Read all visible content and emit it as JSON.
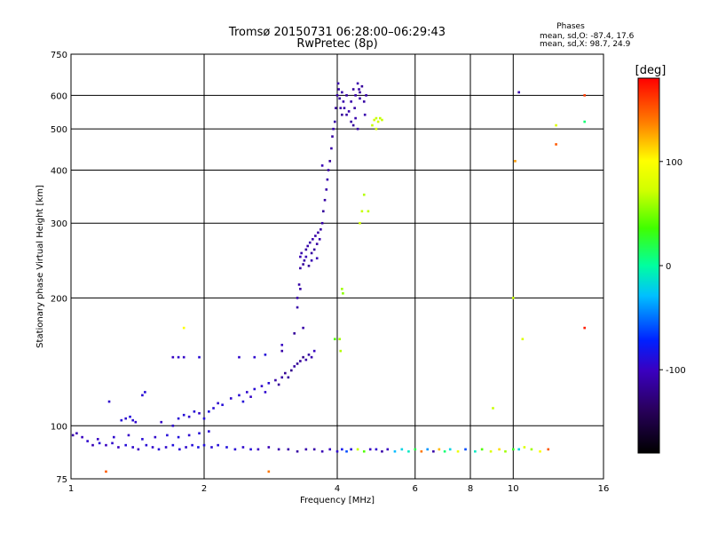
{
  "chart_data": {
    "type": "scatter",
    "title": "Tromsø 20150731 06:28:00–06:29:43",
    "subtitle": "RwPretec (8p)",
    "xlabel": "Frequency [MHz]",
    "ylabel": "Stationary phase Virtual Height [km]",
    "x_scale": "log",
    "y_scale": "log",
    "xlim": [
      1,
      16
    ],
    "ylim": [
      75,
      750
    ],
    "x_ticks": [
      1,
      2,
      4,
      6,
      8,
      10,
      16
    ],
    "y_ticks": [
      75,
      100,
      200,
      300,
      400,
      500,
      600,
      750
    ],
    "x_gridlines": [
      2,
      4,
      6,
      8,
      10
    ],
    "y_gridlines": [
      100,
      200,
      300,
      400,
      500,
      600
    ],
    "grid": true,
    "legend_box": {
      "title": "Phases",
      "line1": "mean, sd,O:  -87.4, 17.6",
      "line2": "mean, sd,X:  98.7, 24.9"
    },
    "colorbar": {
      "label": "[deg]",
      "range": [
        -180,
        180
      ],
      "ticks": [
        -100,
        0,
        100
      ]
    },
    "points": [
      [
        1.01,
        95,
        -110
      ],
      [
        1.03,
        96,
        -105
      ],
      [
        1.06,
        94,
        -100
      ],
      [
        1.09,
        92,
        -95
      ],
      [
        1.12,
        90,
        -105
      ],
      [
        1.16,
        91,
        -90
      ],
      [
        1.2,
        90,
        -100
      ],
      [
        1.24,
        91,
        -95
      ],
      [
        1.28,
        89,
        -100
      ],
      [
        1.33,
        90,
        -90
      ],
      [
        1.38,
        89,
        -95
      ],
      [
        1.42,
        88,
        -100
      ],
      [
        1.48,
        90,
        -92
      ],
      [
        1.53,
        89,
        -96
      ],
      [
        1.58,
        88,
        -90
      ],
      [
        1.64,
        89,
        -95
      ],
      [
        1.7,
        90,
        -88
      ],
      [
        1.76,
        88,
        -92
      ],
      [
        1.82,
        89,
        -95
      ],
      [
        1.88,
        90,
        -90
      ],
      [
        1.94,
        89,
        -85
      ],
      [
        2.0,
        90,
        -88
      ],
      [
        2.08,
        89,
        -92
      ],
      [
        2.15,
        90,
        -90
      ],
      [
        2.25,
        89,
        -88
      ],
      [
        2.35,
        88,
        -92
      ],
      [
        2.45,
        89,
        -95
      ],
      [
        2.55,
        88,
        -90
      ],
      [
        2.65,
        88,
        -100
      ],
      [
        2.8,
        89,
        -105
      ],
      [
        2.95,
        88,
        -108
      ],
      [
        3.1,
        88,
        -110
      ],
      [
        3.25,
        87,
        -112
      ],
      [
        3.4,
        88,
        -108
      ],
      [
        3.55,
        88,
        -110
      ],
      [
        3.7,
        87,
        -105
      ],
      [
        3.85,
        88,
        -100
      ],
      [
        4.0,
        87,
        -95
      ],
      [
        4.1,
        88,
        -80
      ],
      [
        4.2,
        87,
        -60
      ],
      [
        4.3,
        88,
        -90
      ],
      [
        4.45,
        88,
        70
      ],
      [
        4.6,
        87,
        40
      ],
      [
        4.75,
        88,
        -100
      ],
      [
        4.9,
        88,
        -95
      ],
      [
        5.05,
        87,
        -110
      ],
      [
        5.2,
        88,
        -100
      ],
      [
        5.4,
        87,
        -30
      ],
      [
        5.6,
        88,
        -20
      ],
      [
        5.8,
        87,
        -10
      ],
      [
        6.0,
        88,
        20
      ],
      [
        6.2,
        87,
        140
      ],
      [
        6.4,
        88,
        -40
      ],
      [
        6.6,
        87,
        -110
      ],
      [
        6.8,
        88,
        120
      ],
      [
        7.0,
        87,
        10
      ],
      [
        7.2,
        88,
        -20
      ],
      [
        7.5,
        87,
        90
      ],
      [
        7.8,
        88,
        -60
      ],
      [
        8.2,
        87,
        -10
      ],
      [
        8.5,
        88,
        40
      ],
      [
        8.9,
        87,
        80
      ],
      [
        9.3,
        88,
        110
      ],
      [
        9.6,
        87,
        60
      ],
      [
        10.0,
        88,
        30
      ],
      [
        10.3,
        88,
        -20
      ],
      [
        10.6,
        89,
        80
      ],
      [
        11.0,
        88,
        60
      ],
      [
        11.5,
        87,
        100
      ],
      [
        12.0,
        88,
        150
      ],
      [
        1.15,
        93,
        -100
      ],
      [
        1.25,
        94,
        -95
      ],
      [
        1.35,
        95,
        -98
      ],
      [
        1.45,
        93,
        -92
      ],
      [
        1.55,
        94,
        -96
      ],
      [
        1.65,
        95,
        -90
      ],
      [
        1.75,
        94,
        -88
      ],
      [
        1.85,
        95,
        -94
      ],
      [
        1.95,
        96,
        -90
      ],
      [
        2.05,
        97,
        -92
      ],
      [
        1.3,
        103,
        -90
      ],
      [
        1.33,
        104,
        -95
      ],
      [
        1.36,
        105,
        -88
      ],
      [
        1.38,
        103,
        -92
      ],
      [
        1.4,
        102,
        -96
      ],
      [
        1.45,
        118,
        -92
      ],
      [
        1.47,
        120,
        -90
      ],
      [
        1.22,
        114,
        -95
      ],
      [
        1.6,
        102,
        -98
      ],
      [
        1.7,
        100,
        -95
      ],
      [
        1.75,
        104,
        -92
      ],
      [
        1.8,
        106,
        -90
      ],
      [
        1.85,
        105,
        -95
      ],
      [
        1.9,
        108,
        -92
      ],
      [
        1.95,
        107,
        -98
      ],
      [
        2.0,
        104,
        -90
      ],
      [
        2.05,
        108,
        -88
      ],
      [
        2.1,
        110,
        -92
      ],
      [
        2.15,
        113,
        -95
      ],
      [
        2.2,
        112,
        -90
      ],
      [
        2.3,
        116,
        -95
      ],
      [
        2.4,
        118,
        -92
      ],
      [
        2.45,
        114,
        -90
      ],
      [
        2.5,
        120,
        -95
      ],
      [
        2.55,
        117,
        -98
      ],
      [
        2.6,
        122,
        -92
      ],
      [
        2.7,
        124,
        -96
      ],
      [
        2.75,
        120,
        -95
      ],
      [
        2.8,
        126,
        -92
      ],
      [
        2.9,
        128,
        -110
      ],
      [
        2.95,
        125,
        -115
      ],
      [
        3.0,
        130,
        -112
      ],
      [
        3.05,
        133,
        -118
      ],
      [
        3.1,
        130,
        -115
      ],
      [
        3.15,
        135,
        -120
      ],
      [
        3.2,
        138,
        -112
      ],
      [
        3.25,
        140,
        -118
      ],
      [
        3.3,
        142,
        -115
      ],
      [
        3.35,
        145,
        -120
      ],
      [
        3.4,
        143,
        -110
      ],
      [
        3.45,
        147,
        -112
      ],
      [
        3.5,
        145,
        -108
      ],
      [
        3.55,
        150,
        -100
      ],
      [
        1.7,
        145,
        -100
      ],
      [
        1.75,
        145,
        -95
      ],
      [
        1.8,
        145,
        -98
      ],
      [
        1.95,
        145,
        -92
      ],
      [
        2.4,
        145,
        -96
      ],
      [
        2.6,
        145,
        -95
      ],
      [
        2.75,
        147,
        -90
      ],
      [
        3.0,
        150,
        -110
      ],
      [
        3.2,
        165,
        -115
      ],
      [
        3.35,
        170,
        -110
      ],
      [
        1.8,
        170,
        100
      ],
      [
        3.0,
        155,
        -100
      ],
      [
        3.25,
        190,
        -110
      ],
      [
        3.25,
        200,
        -108
      ],
      [
        3.3,
        210,
        -112
      ],
      [
        3.28,
        215,
        -110
      ],
      [
        3.3,
        235,
        -112
      ],
      [
        3.3,
        250,
        -105
      ],
      [
        3.35,
        240,
        -115
      ],
      [
        3.32,
        255,
        -108
      ],
      [
        3.37,
        245,
        -110
      ],
      [
        3.4,
        260,
        -112
      ],
      [
        3.4,
        250,
        -105
      ],
      [
        3.45,
        238,
        -115
      ],
      [
        3.43,
        265,
        -108
      ],
      [
        3.47,
        270,
        -110
      ],
      [
        3.5,
        255,
        -112
      ],
      [
        3.5,
        245,
        -105
      ],
      [
        3.52,
        275,
        -108
      ],
      [
        3.55,
        260,
        -115
      ],
      [
        3.57,
        280,
        -110
      ],
      [
        3.6,
        268,
        -112
      ],
      [
        3.6,
        248,
        -105
      ],
      [
        3.62,
        285,
        -110
      ],
      [
        3.65,
        275,
        -108
      ],
      [
        3.67,
        290,
        -112
      ],
      [
        3.7,
        300,
        -110
      ],
      [
        3.72,
        320,
        -115
      ],
      [
        3.75,
        340,
        -112
      ],
      [
        3.78,
        360,
        -110
      ],
      [
        3.8,
        380,
        -108
      ],
      [
        3.82,
        400,
        -112
      ],
      [
        3.85,
        420,
        -115
      ],
      [
        3.88,
        450,
        -110
      ],
      [
        3.9,
        480,
        -112
      ],
      [
        3.92,
        500,
        -108
      ],
      [
        3.95,
        520,
        -110
      ],
      [
        3.97,
        560,
        -115
      ],
      [
        4.0,
        600,
        -112
      ],
      [
        4.02,
        640,
        -110
      ],
      [
        4.03,
        620,
        -108
      ],
      [
        4.05,
        590,
        -112
      ],
      [
        4.07,
        560,
        -110
      ],
      [
        4.1,
        540,
        -115
      ],
      [
        4.13,
        580,
        -108
      ],
      [
        4.15,
        560,
        -110
      ],
      [
        4.2,
        600,
        -112
      ],
      [
        4.25,
        550,
        -108
      ],
      [
        4.3,
        520,
        -110
      ],
      [
        4.35,
        510,
        -115
      ],
      [
        4.38,
        560,
        -112
      ],
      [
        4.4,
        600,
        -110
      ],
      [
        4.45,
        640,
        -108
      ],
      [
        4.48,
        620,
        -112
      ],
      [
        4.5,
        590,
        -110
      ],
      [
        4.55,
        630,
        -115
      ],
      [
        4.6,
        580,
        -112
      ],
      [
        4.62,
        540,
        -108
      ],
      [
        4.65,
        600,
        -110
      ],
      [
        4.2,
        540,
        -112
      ],
      [
        4.3,
        580,
        -110
      ],
      [
        4.4,
        530,
        -108
      ],
      [
        4.5,
        610,
        -112
      ],
      [
        4.1,
        610,
        -110
      ],
      [
        4.35,
        620,
        -115
      ],
      [
        4.45,
        500,
        -110
      ],
      [
        3.7,
        410,
        -105
      ],
      [
        4.8,
        510,
        70
      ],
      [
        4.85,
        525,
        75
      ],
      [
        4.9,
        530,
        70
      ],
      [
        4.95,
        520,
        72
      ],
      [
        5.0,
        530,
        68
      ],
      [
        5.05,
        525,
        70
      ],
      [
        4.9,
        500,
        75
      ],
      [
        4.6,
        350,
        65
      ],
      [
        4.55,
        320,
        70
      ],
      [
        4.5,
        300,
        72
      ],
      [
        4.7,
        320,
        68
      ],
      [
        4.1,
        210,
        60
      ],
      [
        4.12,
        205,
        55
      ],
      [
        3.95,
        160,
        40
      ],
      [
        4.05,
        160,
        60
      ],
      [
        4.07,
        150,
        65
      ],
      [
        10.3,
        610,
        -110
      ],
      [
        10.1,
        420,
        130
      ],
      [
        12.5,
        460,
        150
      ],
      [
        14.5,
        600,
        160
      ],
      [
        14.5,
        520,
        10
      ],
      [
        12.5,
        510,
        80
      ],
      [
        10.5,
        160,
        80
      ],
      [
        10.0,
        200,
        70
      ],
      [
        9.0,
        110,
        70
      ],
      [
        14.5,
        170,
        170
      ],
      [
        1.2,
        78,
        150
      ],
      [
        2.8,
        78,
        140
      ]
    ]
  }
}
